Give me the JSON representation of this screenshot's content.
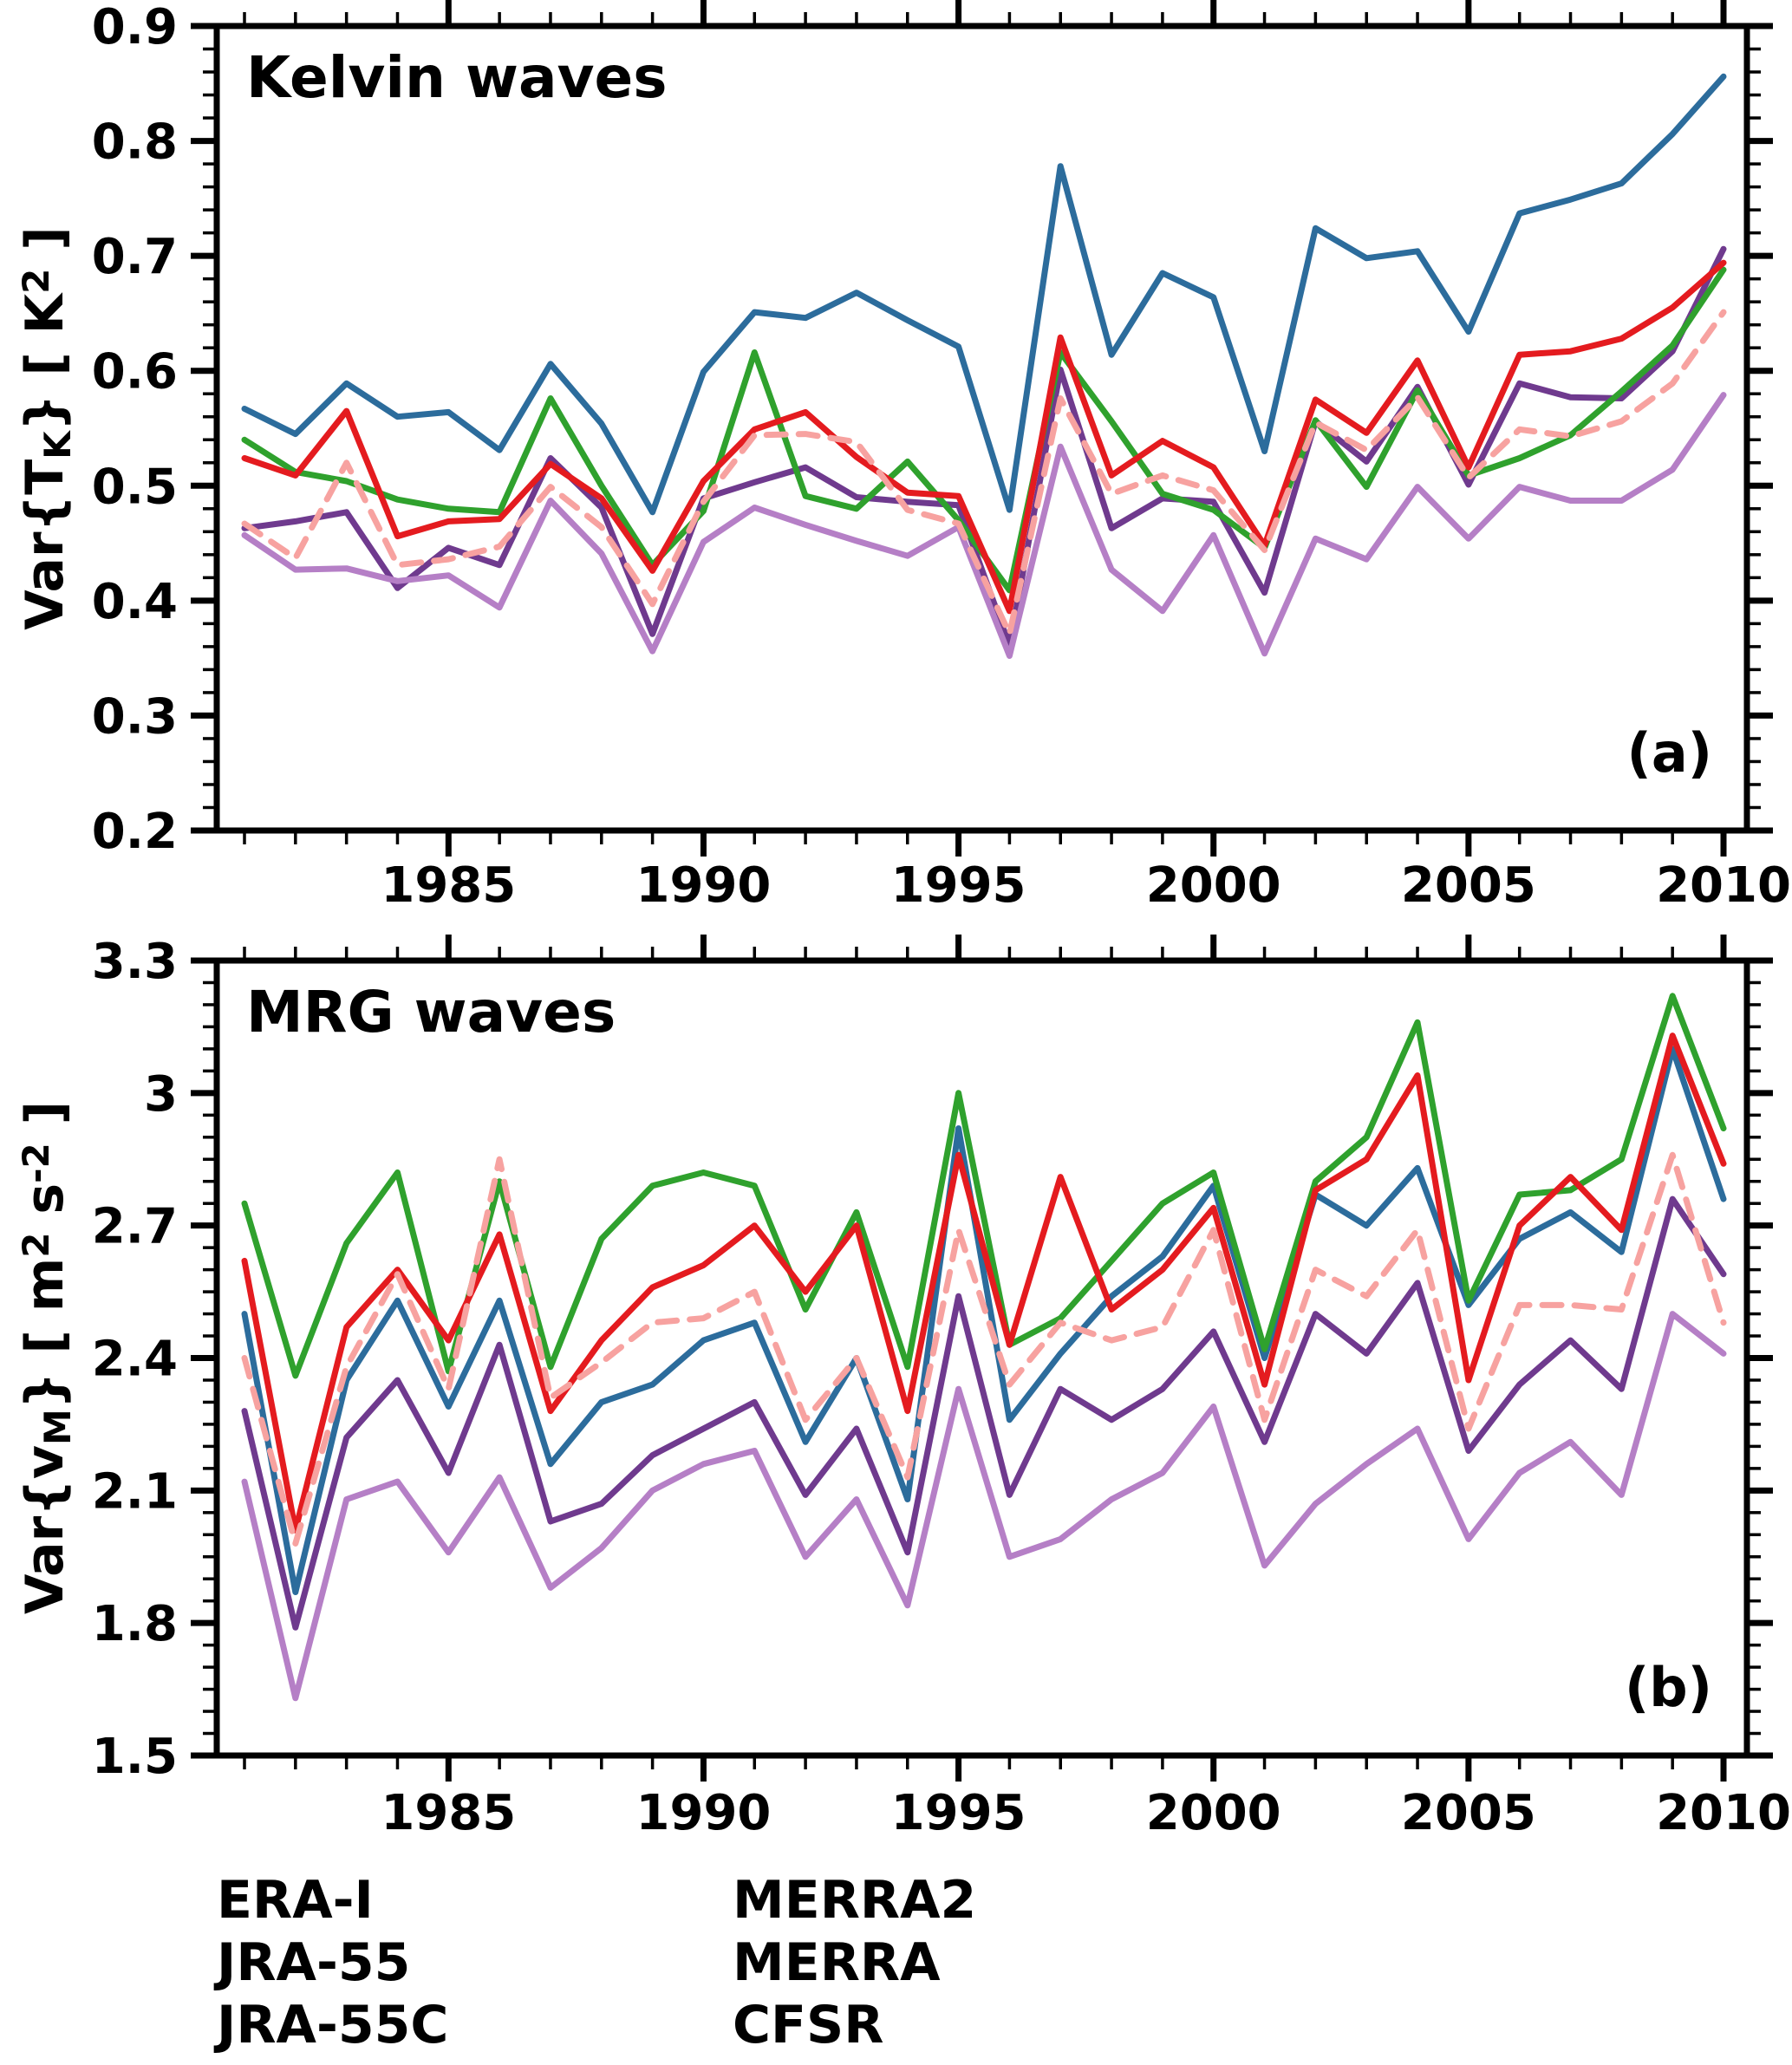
{
  "figure": {
    "background": "#ffffff",
    "axis_color": "#000000"
  },
  "legend": {
    "items": [
      {
        "label": "ERA-I",
        "color": "#2C6C9C",
        "dashed": false
      },
      {
        "label": "JRA-55",
        "color": "#6F3A8E",
        "dashed": false
      },
      {
        "label": "JRA-55C",
        "color": "#B57FC6",
        "dashed": false
      },
      {
        "label": "MERRA2",
        "color": "#E41B1F",
        "dashed": false
      },
      {
        "label": "MERRA",
        "color": "#F7A2A0",
        "dashed": true
      },
      {
        "label": "CFSR",
        "color": "#2FA12D",
        "dashed": false
      }
    ]
  },
  "chart_data": [
    {
      "type": "line",
      "panel_label": "(a)",
      "title": "Kelvin waves",
      "ylabel": "Var{Tₖ} [ K² ]",
      "ylabel_parts": [
        {
          "t": "Var{T"
        },
        {
          "t": "K",
          "sub": true
        },
        {
          "t": "}  [ K"
        },
        {
          "t": "2",
          "sup": true
        },
        {
          "t": " ]"
        }
      ],
      "xlabel": "",
      "ylim": [
        0.2,
        0.9
      ],
      "xlim": [
        1980.46,
        2010.46
      ],
      "grid": false,
      "legend_position": "below-figure",
      "years": [
        1981,
        1982,
        1983,
        1984,
        1985,
        1986,
        1987,
        1988,
        1989,
        1990,
        1991,
        1992,
        1993,
        1994,
        1995,
        1996,
        1997,
        1998,
        1999,
        2000,
        2001,
        2002,
        2003,
        2004,
        2005,
        2006,
        2007,
        2008,
        2009,
        2010
      ],
      "xticks": {
        "major_values": [
          1985,
          1990,
          1995,
          2000,
          2005,
          2010
        ],
        "major_labels": [
          "1985",
          "1990",
          "1995",
          "2000",
          "2005",
          "2010"
        ],
        "minor_step_years": 1
      },
      "yticks": {
        "major_values": [
          0.9,
          0.8,
          0.7,
          0.6,
          0.5,
          0.4,
          0.3,
          0.2
        ],
        "major_labels": [
          "0.9",
          "0.8",
          "0.7",
          "0.6",
          "0.5",
          "0.4",
          "0.3",
          "0.2"
        ],
        "minor_step": 0.02
      },
      "series": [
        {
          "name": "ERA-I",
          "color": "#2C6C9C",
          "dashed": false,
          "values": [
            0.567,
            0.545,
            0.589,
            0.56,
            0.564,
            0.531,
            0.606,
            0.554,
            0.477,
            0.599,
            0.651,
            0.646,
            0.668,
            0.644,
            0.621,
            0.479,
            0.778,
            0.614,
            0.685,
            0.664,
            0.53,
            0.724,
            0.698,
            0.704,
            0.634,
            0.737,
            0.749,
            0.763,
            0.806,
            0.856
          ]
        },
        {
          "name": "JRA-55",
          "color": "#6F3A8E",
          "dashed": false,
          "values": [
            0.463,
            0.469,
            0.477,
            0.411,
            0.446,
            0.431,
            0.524,
            0.481,
            0.371,
            0.489,
            0.503,
            0.516,
            0.49,
            0.486,
            0.483,
            0.361,
            0.601,
            0.463,
            0.489,
            0.486,
            0.407,
            0.556,
            0.521,
            0.586,
            0.501,
            0.589,
            0.577,
            0.576,
            0.617,
            0.706
          ]
        },
        {
          "name": "JRA-55C",
          "color": "#B57FC6",
          "dashed": false,
          "values": [
            0.457,
            0.427,
            0.428,
            0.417,
            0.422,
            0.394,
            0.487,
            0.441,
            0.356,
            0.451,
            0.481,
            0.466,
            0.452,
            0.439,
            0.464,
            0.352,
            0.534,
            0.427,
            0.391,
            0.457,
            0.354,
            0.454,
            0.436,
            0.499,
            0.454,
            0.499,
            0.487,
            0.487,
            0.514,
            0.579
          ]
        },
        {
          "name": "CFSR",
          "color": "#2FA12D",
          "dashed": false,
          "values": [
            0.54,
            0.512,
            0.504,
            0.488,
            0.48,
            0.477,
            0.576,
            0.5,
            0.431,
            0.478,
            0.616,
            0.491,
            0.48,
            0.521,
            0.47,
            0.409,
            0.616,
            0.556,
            0.493,
            0.479,
            0.446,
            0.557,
            0.499,
            0.583,
            0.509,
            0.524,
            0.544,
            0.582,
            0.622,
            0.688
          ]
        },
        {
          "name": "MERRA2",
          "color": "#E41B1F",
          "dashed": false,
          "values": [
            0.524,
            0.509,
            0.565,
            0.456,
            0.469,
            0.471,
            0.519,
            0.489,
            0.426,
            0.504,
            0.549,
            0.564,
            0.525,
            0.494,
            0.491,
            0.391,
            0.629,
            0.509,
            0.539,
            0.516,
            0.448,
            0.575,
            0.546,
            0.609,
            0.516,
            0.614,
            0.617,
            0.628,
            0.655,
            0.694
          ]
        },
        {
          "name": "MERRA",
          "color": "#F7A2A0",
          "dashed": true,
          "values": [
            0.467,
            0.437,
            0.52,
            0.431,
            0.436,
            0.447,
            0.499,
            0.464,
            0.397,
            0.486,
            0.544,
            0.545,
            0.538,
            0.479,
            0.467,
            0.371,
            0.576,
            0.493,
            0.509,
            0.496,
            0.444,
            0.555,
            0.531,
            0.577,
            0.507,
            0.549,
            0.543,
            0.556,
            0.589,
            0.651
          ]
        }
      ]
    },
    {
      "type": "line",
      "panel_label": "(b)",
      "title": "MRG waves",
      "ylabel": "Var{vₘ} [ m² s⁻² ]",
      "ylabel_parts": [
        {
          "t": "Var{v"
        },
        {
          "t": "M",
          "sub": true
        },
        {
          "t": "}  [ m"
        },
        {
          "t": "2",
          "sup": true
        },
        {
          "t": " s"
        },
        {
          "t": "-2",
          "sup": true
        },
        {
          "t": " ]"
        }
      ],
      "xlabel": "",
      "ylim": [
        1.5,
        3.3
      ],
      "xlim": [
        1980.46,
        2010.46
      ],
      "grid": false,
      "legend_position": "below-figure",
      "years": [
        1981,
        1982,
        1983,
        1984,
        1985,
        1986,
        1987,
        1988,
        1989,
        1990,
        1991,
        1992,
        1993,
        1994,
        1995,
        1996,
        1997,
        1998,
        1999,
        2000,
        2001,
        2002,
        2003,
        2004,
        2005,
        2006,
        2007,
        2008,
        2009,
        2010
      ],
      "xticks": {
        "major_values": [
          1985,
          1990,
          1995,
          2000,
          2005,
          2010
        ],
        "major_labels": [
          "1985",
          "1990",
          "1995",
          "2000",
          "2005",
          "2010"
        ],
        "minor_step_years": 1
      },
      "yticks": {
        "major_values": [
          3.3,
          3.0,
          2.7,
          2.4,
          2.1,
          1.8,
          1.5
        ],
        "major_labels": [
          "3.3",
          "3",
          "2.7",
          "2.4",
          "2.1",
          "1.8",
          "1.5"
        ],
        "minor_step": 0.05
      },
      "series": [
        {
          "name": "ERA-I",
          "color": "#2C6C9C",
          "dashed": false,
          "values": [
            2.5,
            1.87,
            2.35,
            2.53,
            2.29,
            2.53,
            2.16,
            2.3,
            2.34,
            2.44,
            2.48,
            2.21,
            2.4,
            2.08,
            2.92,
            2.26,
            2.41,
            2.54,
            2.63,
            2.79,
            2.4,
            2.77,
            2.7,
            2.83,
            2.52,
            2.67,
            2.73,
            2.64,
            3.1,
            2.76
          ]
        },
        {
          "name": "JRA-55",
          "color": "#6F3A8E",
          "dashed": false,
          "values": [
            2.28,
            1.79,
            2.22,
            2.35,
            2.14,
            2.43,
            2.03,
            2.07,
            2.18,
            2.24,
            2.3,
            2.09,
            2.24,
            1.96,
            2.54,
            2.09,
            2.33,
            2.26,
            2.33,
            2.46,
            2.21,
            2.5,
            2.41,
            2.57,
            2.19,
            2.34,
            2.44,
            2.33,
            2.76,
            2.59
          ]
        },
        {
          "name": "JRA-55C",
          "color": "#B57FC6",
          "dashed": false,
          "values": [
            2.12,
            1.63,
            2.08,
            2.12,
            1.96,
            2.13,
            1.88,
            1.97,
            2.1,
            2.16,
            2.19,
            1.95,
            2.08,
            1.84,
            2.33,
            1.95,
            1.99,
            2.08,
            2.14,
            2.29,
            1.93,
            2.07,
            2.16,
            2.24,
            1.99,
            2.14,
            2.21,
            2.09,
            2.5,
            2.41
          ]
        },
        {
          "name": "CFSR",
          "color": "#2FA12D",
          "dashed": false,
          "values": [
            2.75,
            2.36,
            2.66,
            2.82,
            2.37,
            2.8,
            2.38,
            2.67,
            2.79,
            2.82,
            2.79,
            2.51,
            2.73,
            2.38,
            3.0,
            2.43,
            2.49,
            2.62,
            2.75,
            2.82,
            2.42,
            2.8,
            2.9,
            3.16,
            2.53,
            2.77,
            2.78,
            2.85,
            3.22,
            2.92
          ]
        },
        {
          "name": "MERRA2",
          "color": "#E41B1F",
          "dashed": false,
          "values": [
            2.62,
            2.01,
            2.47,
            2.6,
            2.44,
            2.68,
            2.28,
            2.44,
            2.56,
            2.61,
            2.7,
            2.55,
            2.7,
            2.28,
            2.86,
            2.43,
            2.81,
            2.51,
            2.6,
            2.74,
            2.34,
            2.78,
            2.85,
            3.04,
            2.35,
            2.7,
            2.81,
            2.69,
            3.13,
            2.84
          ]
        },
        {
          "name": "MERRA",
          "color": "#F7A2A0",
          "dashed": true,
          "values": [
            2.4,
            1.98,
            2.38,
            2.59,
            2.33,
            2.85,
            2.31,
            2.39,
            2.48,
            2.49,
            2.55,
            2.26,
            2.4,
            2.13,
            2.69,
            2.34,
            2.48,
            2.44,
            2.47,
            2.69,
            2.26,
            2.6,
            2.54,
            2.69,
            2.24,
            2.52,
            2.52,
            2.51,
            2.86,
            2.48
          ]
        }
      ]
    }
  ]
}
